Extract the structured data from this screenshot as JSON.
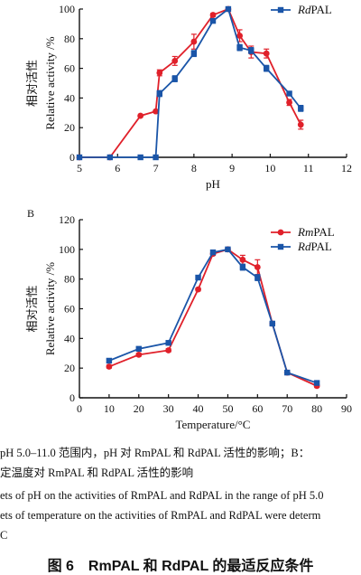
{
  "chart_data": [
    {
      "type": "line",
      "panel_label": "",
      "xlabel": "pH",
      "ylabel_cn": "相对活性",
      "ylabel_en": "Relative activity /%",
      "xlim": [
        5,
        12
      ],
      "ylim": [
        0,
        100
      ],
      "xticks": [
        5,
        6,
        7,
        8,
        9,
        10,
        11,
        12
      ],
      "yticks": [
        0,
        20,
        40,
        60,
        80,
        100
      ],
      "legend_position": "top-right",
      "series": [
        {
          "name": "",
          "color": "#e0202a",
          "marker": "circle",
          "x": [
            5.0,
            5.8,
            6.6,
            7.0,
            7.1,
            7.5,
            8.0,
            8.5,
            8.9,
            9.2,
            9.5,
            9.9,
            10.5,
            10.8
          ],
          "y": [
            0,
            0,
            28,
            31,
            57,
            65,
            78,
            96,
            100,
            82,
            71,
            70,
            37,
            22
          ],
          "error": [
            0,
            0,
            0,
            0,
            2,
            3,
            5,
            1,
            0,
            4,
            4,
            3,
            2,
            3
          ]
        },
        {
          "name": "RdPAL",
          "color": "#1a55a8",
          "marker": "square",
          "x": [
            5.0,
            5.8,
            6.6,
            7.0,
            7.1,
            7.5,
            8.0,
            8.5,
            8.9,
            9.2,
            9.5,
            9.9,
            10.5,
            10.8
          ],
          "y": [
            0,
            0,
            0,
            0,
            43,
            53,
            70,
            92,
            100,
            74,
            72,
            60,
            43,
            33
          ],
          "error": [
            0,
            0,
            0,
            0,
            2,
            2,
            2,
            1,
            0,
            2,
            2,
            2,
            1,
            2
          ]
        }
      ]
    },
    {
      "type": "line",
      "panel_label": "B",
      "xlabel": "Temperature/°C",
      "ylabel_cn": "相对活性",
      "ylabel_en": "Relative activity /%",
      "xlim": [
        0,
        90
      ],
      "ylim": [
        0,
        120
      ],
      "xticks": [
        0,
        10,
        20,
        30,
        40,
        50,
        60,
        70,
        80,
        90
      ],
      "yticks": [
        0,
        20,
        40,
        60,
        80,
        100,
        120
      ],
      "legend_position": "top-right",
      "series": [
        {
          "name": "RmPAL",
          "color": "#e0202a",
          "marker": "circle",
          "x": [
            10,
            20,
            30,
            40,
            45,
            50,
            55,
            60,
            65,
            70,
            80
          ],
          "y": [
            21,
            29,
            32,
            73,
            97,
            100,
            93,
            88,
            50,
            17,
            8
          ],
          "error": [
            1,
            1,
            1,
            1,
            1,
            0,
            3,
            5,
            1,
            0,
            1
          ]
        },
        {
          "name": "RdPAL",
          "color": "#1a55a8",
          "marker": "square",
          "x": [
            10,
            20,
            30,
            40,
            45,
            50,
            55,
            60,
            65,
            70,
            80
          ],
          "y": [
            25,
            33,
            37,
            81,
            98,
            100,
            88,
            81,
            50,
            17,
            10
          ],
          "error": [
            1,
            1,
            1,
            1,
            1,
            0,
            2,
            2,
            1,
            0,
            1
          ]
        }
      ]
    }
  ],
  "caption": {
    "cn_line1": "pH 5.0–11.0 范围内，pH 对 RmPAL 和 RdPAL 活性的影响；B：",
    "cn_line2": "定温度对 RmPAL 和 RdPAL 活性的影响",
    "en_line1": "ets of pH on the activities of RmPAL and RdPAL in the range of pH 5.0",
    "en_line2": "ets of temperature on the activities of RmPAL and RdPAL were determ",
    "en_line3": "C",
    "title": "图 6　RmPAL 和 RdPAL 的最适反应条件"
  }
}
